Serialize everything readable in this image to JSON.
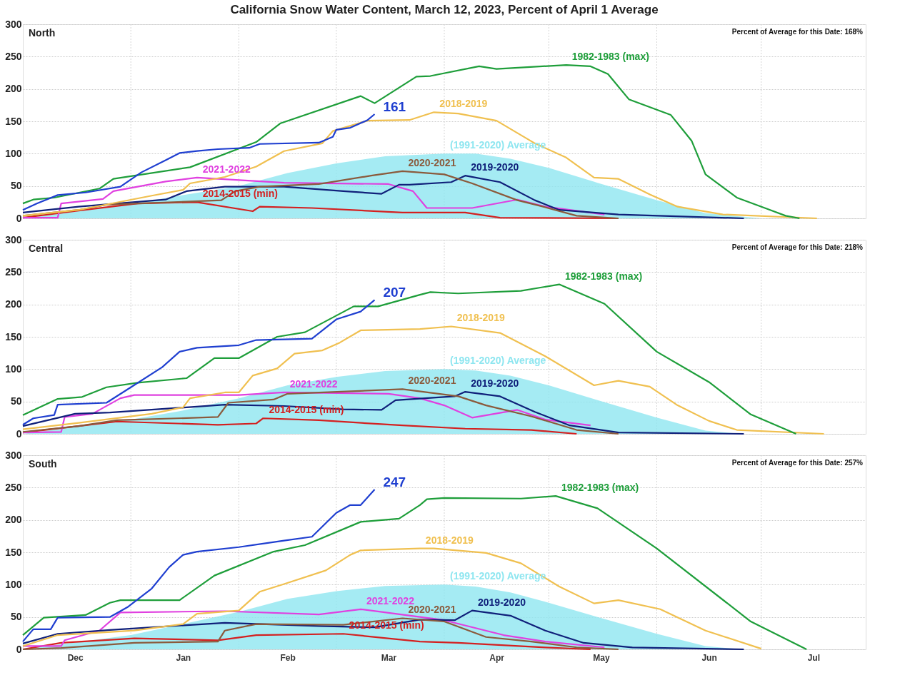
{
  "chart_data": [
    {
      "type": "line",
      "title": "California Snow Water Content, March 12, 2023, Percent of April 1 Average",
      "subtitle": "North",
      "annotations": [
        "Percent of Average for this Date: 168%"
      ],
      "xlim": [
        "2022-12-01",
        "2023-07-31"
      ],
      "xticks": [
        {
          "value": "2023-01-01",
          "label": null
        },
        {
          "value": "2023-02-01",
          "label": null
        },
        {
          "value": "2023-03-01",
          "label": null
        },
        {
          "value": "2023-04-01",
          "label": null
        },
        {
          "value": "2023-05-01",
          "label": null
        },
        {
          "value": "2023-06-01",
          "label": null
        },
        {
          "value": "2023-07-01",
          "label": null
        }
      ],
      "ylim": [
        0,
        300
      ],
      "yticks": [
        0,
        50,
        100,
        150,
        200,
        250,
        300
      ],
      "grid": true,
      "tick_labels": "y",
      "line_style": "solid",
      "marker": "none",
      "series": [
        {
          "type": "area",
          "name": "(1991-2020) Average",
          "color": "#8ee6f0",
          "x": [
            "2022-12-01",
            "2022-12-15",
            "2023-01-01",
            "2023-01-15",
            "2023-02-01",
            "2023-02-15",
            "2023-03-01",
            "2023-03-15",
            "2023-04-01",
            "2023-04-10",
            "2023-04-20",
            "2023-05-01",
            "2023-05-15",
            "2023-06-01",
            "2023-06-15",
            "2023-07-01"
          ],
          "values": [
            0,
            10,
            22,
            35,
            50,
            70,
            85,
            96,
            100,
            100,
            92,
            78,
            55,
            28,
            8,
            0
          ]
        },
        {
          "name": "2014-2015 (min)",
          "color": "#d42020",
          "x": [
            "2022-12-01",
            "2022-12-17",
            "2023-01-03",
            "2023-01-20",
            "2023-02-05",
            "2023-02-07",
            "2023-02-22",
            "2023-03-20",
            "2023-04-07",
            "2023-04-17",
            "2023-05-21"
          ],
          "values": [
            1,
            12,
            23,
            25,
            11,
            18,
            16,
            9,
            9,
            1,
            0
          ]
        },
        {
          "name": "2021-2022",
          "color": "#e040e0",
          "x": [
            "2022-12-01",
            "2022-12-11",
            "2022-12-12",
            "2022-12-24",
            "2022-12-27",
            "2023-01-11",
            "2023-01-20",
            "2023-02-14",
            "2023-03-16",
            "2023-03-23",
            "2023-03-27",
            "2023-04-09",
            "2023-04-22",
            "2023-04-30",
            "2023-05-17"
          ],
          "values": [
            1,
            1,
            23,
            30,
            42,
            57,
            63,
            55,
            53,
            42,
            16,
            16,
            29,
            18,
            6
          ]
        },
        {
          "name": "2019-2020",
          "color": "#10207a",
          "x": [
            "2022-12-01",
            "2022-12-17",
            "2023-01-11",
            "2023-01-17",
            "2023-01-28",
            "2023-02-14",
            "2023-03-03",
            "2023-03-14",
            "2023-03-19",
            "2023-03-22",
            "2023-04-03",
            "2023-04-07",
            "2023-04-17",
            "2023-04-27",
            "2023-05-04",
            "2023-05-21",
            "2023-06-26"
          ],
          "values": [
            9,
            18,
            29,
            42,
            49,
            49,
            42,
            38,
            52,
            52,
            56,
            66,
            56,
            28,
            13,
            6,
            0
          ]
        },
        {
          "name": "2020-2021",
          "color": "#8b5a3c",
          "x": [
            "2022-12-01",
            "2022-12-17",
            "2022-12-25",
            "2023-01-27",
            "2023-01-31",
            "2023-02-07",
            "2023-02-24",
            "2023-03-11",
            "2023-03-20",
            "2023-04-01",
            "2023-04-09",
            "2023-04-22",
            "2023-04-28",
            "2023-05-09",
            "2023-05-21"
          ],
          "values": [
            4,
            13,
            21,
            28,
            42,
            49,
            53,
            66,
            73,
            68,
            54,
            28,
            20,
            4,
            0
          ]
        },
        {
          "name": "2018-2019",
          "color": "#f0c050",
          "x": [
            "2022-12-01",
            "2022-12-17",
            "2023-01-07",
            "2023-01-16",
            "2023-01-18",
            "2023-01-28",
            "2023-02-06",
            "2023-02-14",
            "2023-02-25",
            "2023-02-28",
            "2023-03-10",
            "2023-03-22",
            "2023-03-29",
            "2023-04-05",
            "2023-04-16",
            "2023-04-27",
            "2023-05-06",
            "2023-05-14",
            "2023-05-21",
            "2023-05-30",
            "2023-06-07",
            "2023-06-20",
            "2023-07-17"
          ],
          "values": [
            4,
            13,
            35,
            44,
            54,
            64,
            80,
            104,
            116,
            135,
            151,
            152,
            164,
            162,
            151,
            116,
            94,
            63,
            61,
            37,
            18,
            6,
            0
          ]
        },
        {
          "name": "1982-1983 (max)",
          "color": "#1e9e3a",
          "x": [
            "2022-12-01",
            "2022-12-04",
            "2022-12-10",
            "2022-12-23",
            "2022-12-27",
            "2023-01-18",
            "2023-02-06",
            "2023-02-13",
            "2023-03-08",
            "2023-03-12",
            "2023-03-24",
            "2023-03-28",
            "2023-04-11",
            "2023-04-16",
            "2023-05-06",
            "2023-05-13",
            "2023-05-18",
            "2023-05-24",
            "2023-06-05",
            "2023-06-11",
            "2023-06-15",
            "2023-06-24",
            "2023-07-03",
            "2023-07-08",
            "2023-07-12"
          ],
          "values": [
            23,
            29,
            32,
            46,
            61,
            79,
            118,
            147,
            189,
            178,
            219,
            220,
            235,
            231,
            237,
            235,
            223,
            184,
            160,
            120,
            68,
            32,
            14,
            4,
            0
          ]
        },
        {
          "color": "#1f3fd0",
          "x": [
            "2022-12-01",
            "2022-12-05",
            "2022-12-11",
            "2022-12-19",
            "2022-12-29",
            "2023-01-04",
            "2023-01-11",
            "2023-01-15",
            "2023-01-20",
            "2023-01-26",
            "2023-02-04",
            "2023-02-07",
            "2023-02-24",
            "2023-02-28",
            "2023-03-01",
            "2023-03-05",
            "2023-03-10",
            "2023-03-12"
          ],
          "values": [
            13,
            23,
            36,
            40,
            49,
            71,
            90,
            101,
            104,
            107,
            109,
            115,
            117,
            126,
            137,
            140,
            152,
            161
          ],
          "value_labels": [
            null,
            null,
            null,
            null,
            null,
            null,
            null,
            null,
            null,
            null,
            null,
            null,
            null,
            null,
            null,
            null,
            null,
            "161"
          ]
        }
      ]
    },
    {
      "type": "line",
      "subtitle": "Central",
      "annotations": [
        "Percent of Average for this Date: 218%"
      ],
      "xlim": [
        "2022-12-01",
        "2023-07-31"
      ],
      "xticks": [
        {
          "value": "2023-01-01",
          "label": null
        },
        {
          "value": "2023-02-01",
          "label": null
        },
        {
          "value": "2023-03-01",
          "label": null
        },
        {
          "value": "2023-04-01",
          "label": null
        },
        {
          "value": "2023-05-01",
          "label": null
        },
        {
          "value": "2023-06-01",
          "label": null
        },
        {
          "value": "2023-07-01",
          "label": null
        }
      ],
      "ylim": [
        0,
        300
      ],
      "yticks": [
        0,
        50,
        100,
        150,
        200,
        250,
        300
      ],
      "grid": true,
      "tick_labels": "y",
      "line_style": "solid",
      "marker": "none",
      "series": [
        {
          "type": "area",
          "name": "(1991-2020) Average",
          "color": "#8ee6f0",
          "x": [
            "2022-12-01",
            "2022-12-15",
            "2023-01-01",
            "2023-01-15",
            "2023-02-01",
            "2023-02-15",
            "2023-03-01",
            "2023-03-15",
            "2023-04-01",
            "2023-04-10",
            "2023-04-20",
            "2023-05-01",
            "2023-05-15",
            "2023-06-01",
            "2023-06-15",
            "2023-06-25"
          ],
          "values": [
            0,
            10,
            22,
            35,
            55,
            75,
            88,
            97,
            100,
            98,
            90,
            75,
            52,
            25,
            5,
            0
          ]
        },
        {
          "name": "2014-2015 (min)",
          "color": "#d42020",
          "x": [
            "2022-12-01",
            "2022-12-17",
            "2022-12-28",
            "2023-01-26",
            "2023-02-06",
            "2023-02-08",
            "2023-02-24",
            "2023-03-20",
            "2023-04-07",
            "2023-04-26",
            "2023-05-09"
          ],
          "values": [
            2,
            12,
            19,
            14,
            16,
            24,
            21,
            13,
            8,
            6,
            0
          ]
        },
        {
          "name": "2021-2022",
          "color": "#e040e0",
          "x": [
            "2022-12-01",
            "2022-12-12",
            "2022-12-13",
            "2022-12-21",
            "2022-12-29",
            "2023-01-02",
            "2023-02-01",
            "2023-02-14",
            "2023-03-16",
            "2023-03-25",
            "2023-04-01",
            "2023-04-09",
            "2023-04-22",
            "2023-04-30",
            "2023-05-13"
          ],
          "values": [
            2,
            3,
            26,
            31,
            55,
            60,
            60,
            64,
            62,
            55,
            44,
            25,
            37,
            22,
            13
          ]
        },
        {
          "name": "2019-2020",
          "color": "#10207a",
          "x": [
            "2022-12-01",
            "2022-12-16",
            "2022-12-26",
            "2023-01-17",
            "2023-01-28",
            "2023-02-14",
            "2023-03-03",
            "2023-03-14",
            "2023-03-18",
            "2023-04-04",
            "2023-04-07",
            "2023-04-17",
            "2023-04-27",
            "2023-05-07",
            "2023-05-21",
            "2023-06-26"
          ],
          "values": [
            12,
            31,
            33,
            41,
            45,
            43,
            38,
            37,
            52,
            58,
            65,
            58,
            34,
            13,
            2,
            0
          ]
        },
        {
          "name": "2020-2021",
          "color": "#8b5a3c",
          "x": [
            "2022-12-01",
            "2022-12-17",
            "2022-12-28",
            "2023-01-26",
            "2023-01-29",
            "2023-02-11",
            "2023-02-15",
            "2023-03-20",
            "2023-04-05",
            "2023-04-13",
            "2023-04-26",
            "2023-05-09",
            "2023-05-21"
          ],
          "values": [
            3,
            12,
            21,
            26,
            48,
            53,
            62,
            69,
            58,
            44,
            27,
            6,
            0
          ]
        },
        {
          "name": "2018-2019",
          "color": "#f0c050",
          "x": [
            "2022-12-01",
            "2022-12-17",
            "2023-01-07",
            "2023-01-16",
            "2023-01-18",
            "2023-01-28",
            "2023-02-01",
            "2023-02-05",
            "2023-02-12",
            "2023-02-17",
            "2023-02-25",
            "2023-03-02",
            "2023-03-08",
            "2023-03-25",
            "2023-04-03",
            "2023-04-17",
            "2023-04-30",
            "2023-05-14",
            "2023-05-21",
            "2023-05-30",
            "2023-06-07",
            "2023-06-16",
            "2023-06-24",
            "2023-07-19"
          ],
          "values": [
            7,
            17,
            31,
            41,
            55,
            64,
            64,
            90,
            101,
            124,
            129,
            141,
            160,
            162,
            166,
            156,
            120,
            75,
            82,
            73,
            44,
            20,
            6,
            0
          ]
        },
        {
          "name": "1982-1983 (max)",
          "color": "#1e9e3a",
          "x": [
            "2022-12-01",
            "2022-12-11",
            "2022-12-18",
            "2022-12-25",
            "2023-01-03",
            "2023-01-17",
            "2023-01-25",
            "2023-02-01",
            "2023-02-12",
            "2023-02-20",
            "2023-03-06",
            "2023-03-13",
            "2023-03-25",
            "2023-03-28",
            "2023-04-05",
            "2023-04-23",
            "2023-05-04",
            "2023-05-17",
            "2023-06-01",
            "2023-06-16",
            "2023-06-28",
            "2023-07-11"
          ],
          "values": [
            29,
            54,
            57,
            72,
            79,
            86,
            117,
            117,
            150,
            157,
            197,
            197,
            215,
            219,
            217,
            221,
            231,
            201,
            127,
            80,
            30,
            0
          ]
        },
        {
          "color": "#1f3fd0",
          "x": [
            "2022-12-01",
            "2022-12-04",
            "2022-12-10",
            "2022-12-11",
            "2022-12-25",
            "2023-01-01",
            "2023-01-10",
            "2023-01-15",
            "2023-01-20",
            "2023-02-01",
            "2023-02-06",
            "2023-02-22",
            "2023-03-01",
            "2023-03-08",
            "2023-03-12"
          ],
          "values": [
            14,
            24,
            29,
            45,
            48,
            72,
            103,
            127,
            133,
            137,
            145,
            147,
            177,
            189,
            207
          ],
          "value_labels": [
            null,
            null,
            null,
            null,
            null,
            null,
            null,
            null,
            null,
            null,
            null,
            null,
            null,
            null,
            "207"
          ]
        }
      ]
    },
    {
      "type": "line",
      "subtitle": "South",
      "annotations": [
        "Percent of Average for this Date: 257%"
      ],
      "xlim": [
        "2022-12-01",
        "2023-07-31"
      ],
      "xticks": [
        {
          "value": "2022-12-16",
          "label": "Dec"
        },
        {
          "value": "2023-01-01",
          "label": null
        },
        {
          "value": "2023-01-16",
          "label": "Jan"
        },
        {
          "value": "2023-02-01",
          "label": null
        },
        {
          "value": "2023-02-15",
          "label": "Feb"
        },
        {
          "value": "2023-03-01",
          "label": null
        },
        {
          "value": "2023-03-16",
          "label": "Mar"
        },
        {
          "value": "2023-04-01",
          "label": null
        },
        {
          "value": "2023-04-16",
          "label": "Apr"
        },
        {
          "value": "2023-05-01",
          "label": null
        },
        {
          "value": "2023-05-16",
          "label": "May"
        },
        {
          "value": "2023-06-01",
          "label": null
        },
        {
          "value": "2023-06-16",
          "label": "Jun"
        },
        {
          "value": "2023-07-01",
          "label": null
        },
        {
          "value": "2023-07-16",
          "label": "Jul"
        }
      ],
      "ylim": [
        0,
        300
      ],
      "yticks": [
        0,
        50,
        100,
        150,
        200,
        250,
        300
      ],
      "grid": true,
      "line_style": "solid",
      "marker": "none",
      "series": [
        {
          "type": "area",
          "name": "(1991-2020) Average",
          "color": "#8ee6f0",
          "x": [
            "2022-12-01",
            "2022-12-15",
            "2023-01-01",
            "2023-01-15",
            "2023-02-01",
            "2023-02-15",
            "2023-03-01",
            "2023-03-15",
            "2023-04-01",
            "2023-04-10",
            "2023-04-20",
            "2023-05-01",
            "2023-05-15",
            "2023-06-01",
            "2023-06-15",
            "2023-06-25"
          ],
          "values": [
            0,
            10,
            22,
            38,
            58,
            78,
            90,
            98,
            100,
            97,
            88,
            72,
            50,
            24,
            5,
            0
          ]
        },
        {
          "name": "2014-2015 (min)",
          "color": "#d42020",
          "x": [
            "2022-12-01",
            "2022-12-12",
            "2023-01-02",
            "2023-01-26",
            "2023-02-06",
            "2023-03-03",
            "2023-03-25",
            "2023-04-05",
            "2023-04-30",
            "2023-05-13"
          ],
          "values": [
            0,
            10,
            17,
            14,
            22,
            24,
            12,
            10,
            3,
            0
          ]
        },
        {
          "name": "2021-2022",
          "color": "#e040e0",
          "x": [
            "2022-12-01",
            "2022-12-12",
            "2022-12-13",
            "2022-12-23",
            "2022-12-29",
            "2023-01-28",
            "2023-02-24",
            "2023-03-08",
            "2023-03-25",
            "2023-04-01",
            "2023-04-18",
            "2023-04-30",
            "2023-05-17"
          ],
          "values": [
            5,
            5,
            14,
            29,
            57,
            59,
            54,
            62,
            50,
            45,
            22,
            12,
            3
          ]
        },
        {
          "name": "2019-2020",
          "color": "#10207a",
          "x": [
            "2022-12-01",
            "2022-12-11",
            "2022-12-26",
            "2023-01-28",
            "2023-02-24",
            "2023-03-12",
            "2023-03-25",
            "2023-04-04",
            "2023-04-09",
            "2023-04-20",
            "2023-04-30",
            "2023-05-11",
            "2023-05-25",
            "2023-06-26"
          ],
          "values": [
            9,
            24,
            30,
            41,
            36,
            34,
            46,
            45,
            60,
            52,
            29,
            10,
            3,
            0
          ]
        },
        {
          "name": "2020-2021",
          "color": "#8b5a3c",
          "x": [
            "2022-12-01",
            "2022-12-12",
            "2023-01-02",
            "2023-01-26",
            "2023-01-28",
            "2023-02-06",
            "2023-03-03",
            "2023-03-20",
            "2023-04-01",
            "2023-04-13",
            "2023-04-26",
            "2023-05-09",
            "2023-05-21"
          ],
          "values": [
            0,
            2,
            10,
            12,
            29,
            39,
            38,
            48,
            43,
            19,
            12,
            3,
            0
          ]
        },
        {
          "name": "2018-2019",
          "color": "#f0c050",
          "x": [
            "2022-12-01",
            "2022-12-11",
            "2023-01-02",
            "2023-01-16",
            "2023-01-20",
            "2023-02-01",
            "2023-02-07",
            "2023-02-14",
            "2023-02-26",
            "2023-03-05",
            "2023-03-08",
            "2023-03-25",
            "2023-03-29",
            "2023-04-13",
            "2023-04-23",
            "2023-05-04",
            "2023-05-14",
            "2023-05-21",
            "2023-06-02",
            "2023-06-15",
            "2023-07-01"
          ],
          "values": [
            5,
            22,
            29,
            39,
            55,
            60,
            89,
            101,
            122,
            146,
            153,
            156,
            156,
            149,
            133,
            97,
            71,
            76,
            62,
            29,
            1
          ]
        },
        {
          "name": "1982-1983 (max)",
          "color": "#1e9e3a",
          "x": [
            "2022-12-01",
            "2022-12-07",
            "2022-12-19",
            "2022-12-26",
            "2022-12-29",
            "2023-01-15",
            "2023-01-25",
            "2023-02-11",
            "2023-02-20",
            "2023-03-08",
            "2023-03-19",
            "2023-03-25",
            "2023-03-27",
            "2023-04-01",
            "2023-04-23",
            "2023-05-03",
            "2023-05-15",
            "2023-06-01",
            "2023-06-28",
            "2023-07-14"
          ],
          "values": [
            22,
            49,
            53,
            72,
            76,
            76,
            114,
            151,
            161,
            197,
            202,
            223,
            232,
            234,
            233,
            237,
            218,
            156,
            43,
            0
          ]
        },
        {
          "color": "#1f3fd0",
          "x": [
            "2022-12-01",
            "2022-12-04",
            "2022-12-09",
            "2022-12-11",
            "2022-12-26",
            "2022-12-31",
            "2023-01-07",
            "2023-01-12",
            "2023-01-16",
            "2023-01-20",
            "2023-02-01",
            "2023-02-14",
            "2023-02-22",
            "2023-03-01",
            "2023-03-05",
            "2023-03-08",
            "2023-03-12"
          ],
          "values": [
            12,
            31,
            31,
            49,
            50,
            65,
            94,
            127,
            146,
            151,
            158,
            168,
            174,
            211,
            223,
            223,
            247
          ],
          "value_labels": [
            null,
            null,
            null,
            null,
            null,
            null,
            null,
            null,
            null,
            null,
            null,
            null,
            null,
            null,
            null,
            null,
            "247"
          ]
        }
      ]
    }
  ]
}
